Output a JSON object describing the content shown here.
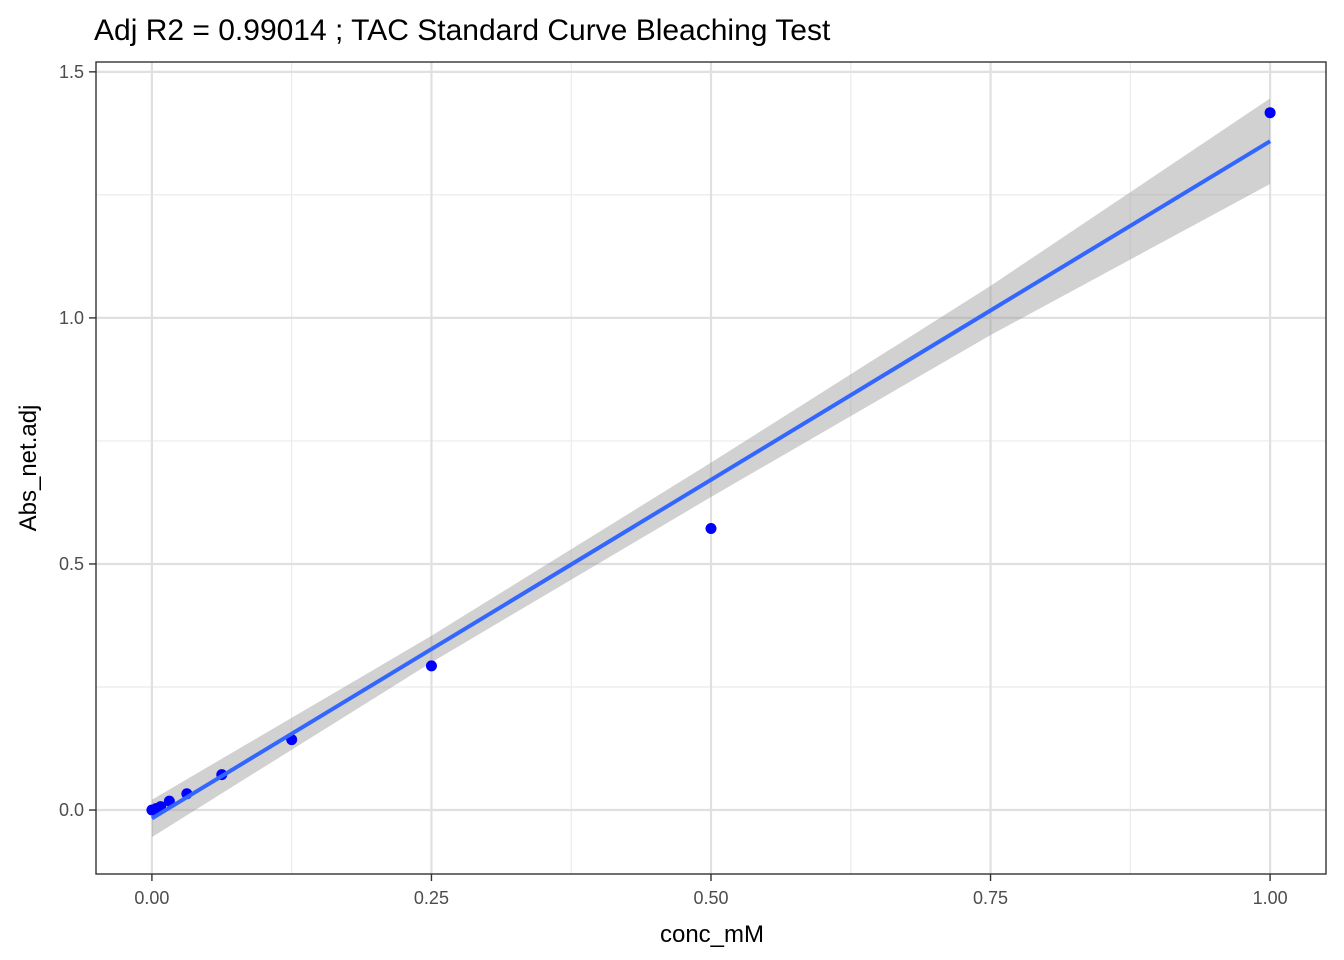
{
  "chart_data": {
    "type": "scatter",
    "title": "Adj R2 =  0.99014 ; TAC Standard Curve Bleaching Test",
    "xlabel": "conc_mM",
    "ylabel": "Abs_net.adj",
    "xlim": [
      -0.05,
      1.05
    ],
    "ylim": [
      -0.13,
      1.52
    ],
    "x_ticks": [
      0,
      0.25,
      0.5,
      0.75,
      1.0
    ],
    "x_tick_labels": [
      "0.00",
      "0.25",
      "0.50",
      "0.75",
      "1.00"
    ],
    "y_ticks": [
      0,
      0.5,
      1.0,
      1.5
    ],
    "y_tick_labels": [
      "0.0",
      "0.5",
      "1.0",
      "1.5"
    ],
    "grid": true,
    "point_color": "#0000ff",
    "line_color": "#3366ff",
    "ribbon_color": "#999999",
    "points": [
      {
        "x": 0.0,
        "y": 0.0
      },
      {
        "x": 0.0039,
        "y": 0.003
      },
      {
        "x": 0.0078,
        "y": 0.007
      },
      {
        "x": 0.0156,
        "y": 0.018
      },
      {
        "x": 0.03125,
        "y": 0.033
      },
      {
        "x": 0.0625,
        "y": 0.072
      },
      {
        "x": 0.125,
        "y": 0.143
      },
      {
        "x": 0.25,
        "y": 0.293
      },
      {
        "x": 0.5,
        "y": 0.572
      },
      {
        "x": 1.0,
        "y": 1.417
      }
    ],
    "fit": {
      "method": "linear",
      "x": [
        0.0,
        0.25,
        0.5,
        0.75,
        1.0
      ],
      "y": [
        -0.017,
        0.327,
        0.671,
        1.015,
        1.359
      ],
      "lower": [
        -0.055,
        0.3,
        0.636,
        0.965,
        1.272
      ],
      "upper": [
        0.021,
        0.354,
        0.706,
        1.065,
        1.446
      ]
    }
  }
}
